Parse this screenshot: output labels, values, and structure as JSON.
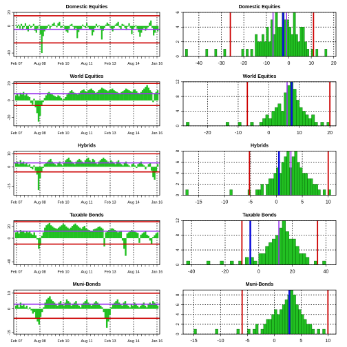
{
  "colors": {
    "bar": "#22c022",
    "bar_stroke": "#005a00",
    "red": "#cc0000",
    "purple": "#9933ee",
    "blue": "#1010dd",
    "grid": "#000000"
  },
  "time_axis": {
    "labels": [
      "Feb 07",
      "Aug 08",
      "Feb 10",
      "Aug 11",
      "Feb 13",
      "Aug 14",
      "Jan 16"
    ],
    "start": "2007-02",
    "end": "2016-01"
  },
  "chart_data": [
    {
      "type": "bar",
      "title": "Domestic Equities",
      "panel": "time-series",
      "ylim": [
        -45,
        20
      ],
      "yticks": [
        20,
        0,
        -40
      ],
      "hlines": {
        "upper": 15,
        "mean": -5,
        "lower": -25
      },
      "values": [
        1,
        -3,
        2,
        -4,
        3,
        -6,
        -2,
        4,
        -5,
        -8,
        2,
        -3,
        -1,
        3,
        -7,
        -10,
        -4,
        1,
        -12,
        -40,
        -15,
        -8,
        -5,
        -3,
        2,
        -4,
        -1,
        3,
        5,
        1,
        -2,
        4,
        6,
        -3,
        -2,
        1,
        -5,
        -8,
        -10,
        -4,
        2,
        3,
        -1,
        -6,
        -3,
        -18,
        -9,
        -5,
        -4,
        2,
        -1,
        -3,
        4,
        -2,
        -5,
        -6,
        -14,
        -9,
        -3,
        3,
        -2,
        1,
        -4,
        -20,
        -7,
        -3,
        2,
        5,
        3,
        -1,
        -4,
        -8,
        -3,
        2,
        4,
        6,
        -2,
        -5,
        3,
        2,
        -3,
        -6,
        -1,
        4,
        -3,
        -12,
        -5,
        -2,
        1,
        -4,
        -9,
        -16,
        -10,
        -6,
        -3,
        -7,
        -4,
        -2,
        5,
        8,
        -3,
        -14,
        -10,
        -6,
        -8
      ]
    },
    {
      "type": "bar",
      "title": "Domestic Equities",
      "panel": "histogram",
      "xlim": [
        -47,
        21
      ],
      "ylim": [
        0,
        6
      ],
      "xticks": [
        -40,
        -30,
        -20,
        -10,
        0,
        10,
        20
      ],
      "yticks": [
        0,
        2,
        4,
        6
      ],
      "vlines": {
        "red": [
          -26,
          11
        ],
        "purple": [
          -7,
          -1
        ],
        "blue": -2.5
      },
      "bins": [
        [
          -46,
          1
        ],
        [
          -37,
          1
        ],
        [
          -33,
          1
        ],
        [
          -29,
          1
        ],
        [
          -21,
          1
        ],
        [
          -19,
          1
        ],
        [
          -17,
          1
        ],
        [
          -15,
          3
        ],
        [
          -14,
          2
        ],
        [
          -13,
          2
        ],
        [
          -12,
          3
        ],
        [
          -11,
          2
        ],
        [
          -10,
          4
        ],
        [
          -9,
          2
        ],
        [
          -8,
          5
        ],
        [
          -7,
          3
        ],
        [
          -6,
          6
        ],
        [
          -5,
          4
        ],
        [
          -4,
          4
        ],
        [
          -3,
          6
        ],
        [
          -2,
          5
        ],
        [
          -1,
          5
        ],
        [
          0,
          4
        ],
        [
          1,
          3
        ],
        [
          2,
          6
        ],
        [
          3,
          3
        ],
        [
          4,
          2
        ],
        [
          5,
          4
        ],
        [
          6,
          4
        ],
        [
          7,
          2
        ],
        [
          8,
          1
        ],
        [
          10,
          1
        ],
        [
          12,
          1
        ],
        [
          16,
          1
        ]
      ]
    },
    {
      "type": "bar",
      "title": "World Equities",
      "panel": "time-series",
      "ylim": [
        -30,
        22
      ],
      "yticks": [
        20,
        0,
        -20
      ],
      "hlines": {
        "upper": 20,
        "mean": 8,
        "lower": -6
      },
      "values": [
        6,
        8,
        5,
        9,
        7,
        10,
        6,
        8,
        5,
        4,
        -3,
        -5,
        2,
        -8,
        -15,
        -25,
        -18,
        -6,
        -2,
        3,
        6,
        9,
        10,
        8,
        7,
        6,
        5,
        4,
        6,
        5,
        3,
        1,
        2,
        4,
        7,
        9,
        11,
        12,
        10,
        9,
        8,
        7,
        9,
        11,
        12,
        13,
        11,
        10,
        12,
        13,
        14,
        12,
        11,
        9,
        10,
        12,
        13,
        15,
        14,
        13,
        12,
        11,
        12,
        13,
        14,
        12,
        11,
        10,
        9,
        8,
        10,
        11,
        12,
        14,
        13,
        12,
        11,
        10,
        12,
        13,
        11,
        9,
        8,
        10,
        12,
        14,
        16,
        18,
        15,
        12,
        10,
        -2,
        8,
        10,
        12
      ]
    },
    {
      "type": "bar",
      "title": "World Equities",
      "panel": "histogram",
      "xlim": [
        -28,
        22
      ],
      "ylim": [
        0,
        12
      ],
      "xticks": [
        -20,
        -10,
        0,
        10,
        20
      ],
      "yticks": [
        0,
        4,
        8,
        12
      ],
      "vlines": {
        "red": [
          -7,
          20
        ],
        "purple": [
          6
        ],
        "blue": 7.5
      },
      "bins": [
        [
          -27,
          1
        ],
        [
          -14,
          1
        ],
        [
          -10,
          1
        ],
        [
          -6,
          1
        ],
        [
          -3,
          1
        ],
        [
          -2,
          2
        ],
        [
          -1,
          3
        ],
        [
          0,
          2
        ],
        [
          1,
          4
        ],
        [
          2,
          5
        ],
        [
          3,
          6
        ],
        [
          4,
          4
        ],
        [
          5,
          9
        ],
        [
          6,
          11
        ],
        [
          7,
          12
        ],
        [
          8,
          10
        ],
        [
          9,
          7
        ],
        [
          10,
          5
        ],
        [
          11,
          4
        ],
        [
          12,
          3
        ],
        [
          13,
          2
        ],
        [
          14,
          3
        ],
        [
          15,
          1
        ],
        [
          17,
          1
        ],
        [
          19,
          1
        ]
      ]
    },
    {
      "type": "bar",
      "title": "Hybrids",
      "panel": "time-series",
      "ylim": [
        -22,
        12
      ],
      "yticks": [
        10,
        0,
        -15
      ],
      "hlines": {
        "upper": 10,
        "mean": 3,
        "lower": -4
      },
      "values": [
        3,
        4,
        2,
        5,
        3,
        4,
        2,
        3,
        1,
        2,
        -1,
        -2,
        1,
        -3,
        -6,
        -18,
        -9,
        -4,
        -1,
        2,
        3,
        4,
        5,
        6,
        4,
        3,
        2,
        1,
        3,
        4,
        2,
        1,
        3,
        5,
        6,
        7,
        5,
        4,
        3,
        2,
        4,
        5,
        6,
        5,
        4,
        3,
        5,
        6,
        7,
        5,
        4,
        6,
        5,
        3,
        2,
        4,
        5,
        6,
        7,
        6,
        5,
        4,
        3,
        5,
        4,
        3,
        2,
        4,
        5,
        3,
        2,
        1,
        3,
        4,
        2,
        1,
        0,
        2,
        3,
        1,
        -1,
        2,
        3,
        4,
        2,
        1,
        -2,
        0,
        2,
        3,
        -3,
        -8,
        -10,
        -4,
        2
      ]
    },
    {
      "type": "bar",
      "title": "Hybrids",
      "panel": "histogram",
      "xlim": [
        -18,
        11.5
      ],
      "ylim": [
        0,
        8
      ],
      "xticks": [
        -15,
        -10,
        -5,
        0,
        5,
        10
      ],
      "yticks": [
        0,
        2,
        4,
        6,
        8
      ],
      "vlines": {
        "red": [
          -5.2,
          10
        ],
        "purple": [
          2.8
        ],
        "blue": 0.5
      },
      "bins": [
        [
          -17.5,
          1
        ],
        [
          -9,
          1
        ],
        [
          -5.5,
          1
        ],
        [
          -4,
          1
        ],
        [
          -3.5,
          1
        ],
        [
          -3,
          2
        ],
        [
          -2,
          2
        ],
        [
          -1.5,
          3
        ],
        [
          -1,
          3
        ],
        [
          -0.5,
          4
        ],
        [
          0,
          5
        ],
        [
          0.5,
          4
        ],
        [
          1,
          6
        ],
        [
          1.5,
          7
        ],
        [
          2,
          8
        ],
        [
          2.5,
          5
        ],
        [
          3,
          7
        ],
        [
          3.5,
          8
        ],
        [
          4,
          6
        ],
        [
          4.5,
          5
        ],
        [
          5,
          4
        ],
        [
          5.5,
          4
        ],
        [
          6,
          3
        ],
        [
          6.5,
          3
        ],
        [
          7,
          2
        ],
        [
          7.5,
          2
        ],
        [
          8,
          1
        ],
        [
          9,
          1
        ],
        [
          10,
          1
        ]
      ]
    },
    {
      "type": "bar",
      "title": "Taxable Bonds",
      "panel": "time-series",
      "ylim": [
        -45,
        30
      ],
      "yticks": [
        20,
        0,
        -40
      ],
      "hlines": {
        "upper": 28,
        "mean": 12,
        "lower": -10
      },
      "values": [
        10,
        12,
        8,
        14,
        11,
        13,
        9,
        12,
        10,
        11,
        8,
        6,
        10,
        5,
        -2,
        -18,
        -12,
        4,
        10,
        18,
        22,
        24,
        26,
        22,
        20,
        18,
        17,
        16,
        18,
        20,
        22,
        24,
        23,
        20,
        18,
        16,
        18,
        21,
        23,
        25,
        22,
        20,
        18,
        16,
        19,
        21,
        17,
        15,
        14,
        13,
        12,
        15,
        16,
        17,
        19,
        20,
        18,
        16,
        -14,
        10,
        12,
        14,
        15,
        17,
        16,
        14,
        12,
        10,
        11,
        13,
        -4,
        -18,
        -30,
        8,
        10,
        12,
        14,
        13,
        11,
        10,
        9,
        -8,
        6,
        8,
        10,
        12,
        6,
        4,
        -4,
        -10,
        2,
        5,
        8,
        10
      ]
    },
    {
      "type": "bar",
      "title": "Taxable Bonds",
      "panel": "histogram",
      "xlim": [
        -45,
        46
      ],
      "ylim": [
        0,
        12
      ],
      "xticks": [
        -40,
        -20,
        0,
        20,
        40
      ],
      "yticks": [
        0,
        4,
        8,
        12
      ],
      "vlines": {
        "red": [
          -10,
          35
        ],
        "purple": [
          12
        ],
        "blue": -5
      },
      "bins": [
        [
          -43,
          1
        ],
        [
          -31,
          1
        ],
        [
          -23,
          1
        ],
        [
          -17,
          1
        ],
        [
          -12,
          1
        ],
        [
          -8,
          2
        ],
        [
          -5,
          2
        ],
        [
          -3,
          1
        ],
        [
          0,
          3
        ],
        [
          2,
          3
        ],
        [
          4,
          5
        ],
        [
          6,
          6
        ],
        [
          8,
          7
        ],
        [
          10,
          8
        ],
        [
          12,
          10
        ],
        [
          14,
          12
        ],
        [
          16,
          9
        ],
        [
          18,
          7
        ],
        [
          20,
          7
        ],
        [
          22,
          5
        ],
        [
          24,
          3
        ],
        [
          26,
          3
        ],
        [
          28,
          2
        ],
        [
          33,
          1
        ],
        [
          38,
          1
        ]
      ]
    },
    {
      "type": "bar",
      "title": "Muni-Bonds",
      "panel": "time-series",
      "ylim": [
        -16,
        12
      ],
      "yticks": [
        10,
        0,
        -15
      ],
      "hlines": {
        "upper": 10,
        "mean": 3,
        "lower": -6
      },
      "values": [
        2,
        3,
        1,
        4,
        2,
        3,
        1,
        2,
        0,
        1,
        -1,
        -3,
        -2,
        -6,
        -8,
        -10,
        -5,
        -2,
        1,
        4,
        6,
        7,
        8,
        6,
        5,
        4,
        3,
        2,
        4,
        5,
        3,
        2,
        4,
        6,
        5,
        4,
        2,
        3,
        4,
        5,
        3,
        2,
        1,
        3,
        4,
        5,
        6,
        4,
        3,
        2,
        3,
        4,
        5,
        4,
        3,
        2,
        1,
        -2,
        -6,
        -12,
        -8,
        -4,
        1,
        3,
        4,
        5,
        6,
        4,
        3,
        2,
        4,
        5,
        3,
        2,
        1,
        3,
        2,
        4,
        3,
        2,
        1,
        2,
        3,
        4,
        2,
        1,
        3,
        4,
        3,
        5,
        4,
        3,
        2
      ]
    },
    {
      "type": "bar",
      "title": "Muni-Bonds",
      "panel": "histogram",
      "xlim": [
        -17,
        11.5
      ],
      "ylim": [
        0,
        9
      ],
      "xticks": [
        -15,
        -10,
        -5,
        0,
        5,
        10
      ],
      "yticks": [
        0,
        2,
        4,
        6,
        8
      ],
      "vlines": {
        "red": [
          -6,
          10
        ],
        "purple": [
          2.8
        ],
        "blue": 2.8
      },
      "bins": [
        [
          -15,
          1
        ],
        [
          -11,
          1
        ],
        [
          -7,
          1
        ],
        [
          -5,
          1
        ],
        [
          -4,
          1
        ],
        [
          -3.5,
          2
        ],
        [
          -2.5,
          1
        ],
        [
          -2,
          2
        ],
        [
          -1.5,
          3
        ],
        [
          -1,
          3
        ],
        [
          -0.5,
          4
        ],
        [
          0,
          5
        ],
        [
          0.5,
          4
        ],
        [
          1,
          5
        ],
        [
          1.5,
          6
        ],
        [
          2,
          7
        ],
        [
          2.5,
          8
        ],
        [
          3,
          9
        ],
        [
          3.5,
          8
        ],
        [
          4,
          6
        ],
        [
          4.5,
          5
        ],
        [
          5,
          4
        ],
        [
          5.5,
          3
        ],
        [
          6,
          2
        ],
        [
          6.5,
          2
        ],
        [
          7,
          1
        ],
        [
          8,
          1
        ],
        [
          9,
          1
        ]
      ]
    }
  ]
}
